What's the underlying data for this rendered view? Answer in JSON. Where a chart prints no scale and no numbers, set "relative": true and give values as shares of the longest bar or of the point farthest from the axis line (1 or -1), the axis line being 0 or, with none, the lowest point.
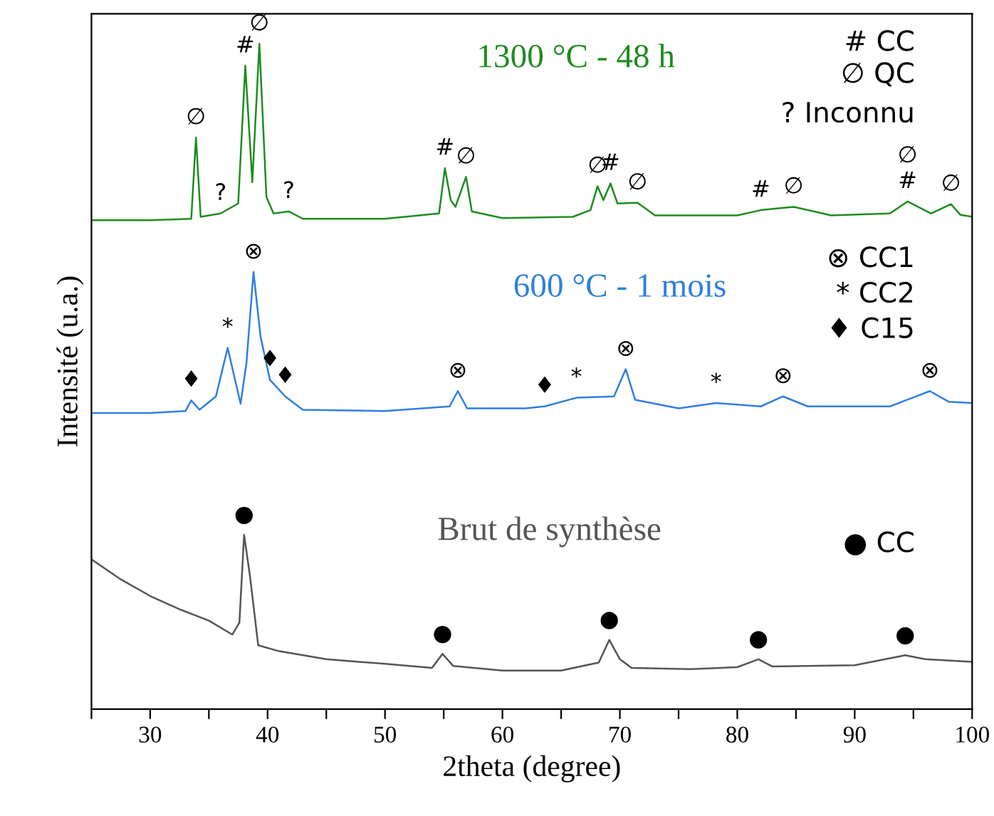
{
  "chart_data": {
    "type": "line",
    "relative": true,
    "xlabel": "2theta (degree)",
    "ylabel": "Intensité (u.a.)",
    "xlim": [
      25,
      100
    ],
    "xticks": [
      {
        "value": 25,
        "label": null
      },
      30,
      {
        "value": 35,
        "label": null
      },
      40,
      {
        "value": 45,
        "label": null
      },
      50,
      {
        "value": 55,
        "label": null
      },
      60,
      {
        "value": 65,
        "label": null
      },
      70,
      {
        "value": 75,
        "label": null
      },
      80,
      {
        "value": 85,
        "label": null
      },
      90,
      {
        "value": 95,
        "label": null
      },
      100
    ],
    "grid": false,
    "legend": false,
    "marker": "none",
    "line_style": "solid",
    "series": [
      {
        "name": "1300 °C - 48 h",
        "color": "#1e8c1e",
        "x": [
          25,
          30,
          33.5,
          33.9,
          34.3,
          36,
          37.5,
          38.1,
          38.7,
          39.3,
          39.9,
          40.5,
          41.8,
          43,
          50,
          54.6,
          55.1,
          55.6,
          56.0,
          56.9,
          57.4,
          60,
          66,
          67.5,
          68.1,
          68.6,
          69.2,
          69.8,
          71.5,
          73,
          80,
          82,
          84.8,
          88,
          93,
          94.5,
          96.5,
          98.2,
          99,
          100
        ],
        "values": [
          0.735,
          0.735,
          0.737,
          0.859,
          0.74,
          0.745,
          0.76,
          0.967,
          0.792,
          1.0,
          0.77,
          0.745,
          0.748,
          0.737,
          0.737,
          0.745,
          0.813,
          0.765,
          0.755,
          0.8,
          0.748,
          0.738,
          0.74,
          0.75,
          0.786,
          0.765,
          0.79,
          0.76,
          0.761,
          0.742,
          0.742,
          0.75,
          0.755,
          0.742,
          0.745,
          0.763,
          0.745,
          0.759,
          0.743,
          0.74
        ]
      },
      {
        "name": "600 °C - 1 mois",
        "color": "#2f7fe0",
        "x": [
          25,
          30,
          33,
          33.5,
          34.2,
          35.6,
          36.6,
          37.7,
          38.2,
          38.8,
          39.4,
          40.2,
          41.5,
          43,
          50,
          55.5,
          56.2,
          57,
          62,
          63.6,
          66.3,
          69.5,
          70.5,
          71.3,
          75,
          78.2,
          82,
          83.9,
          86,
          93,
          96.4,
          98,
          100
        ],
        "values": [
          0.445,
          0.445,
          0.448,
          0.464,
          0.45,
          0.47,
          0.543,
          0.459,
          0.52,
          0.657,
          0.56,
          0.495,
          0.47,
          0.45,
          0.448,
          0.455,
          0.478,
          0.452,
          0.452,
          0.455,
          0.468,
          0.47,
          0.511,
          0.465,
          0.452,
          0.46,
          0.455,
          0.47,
          0.455,
          0.455,
          0.478,
          0.462,
          0.46
        ]
      },
      {
        "name": "Brut de synthèse",
        "color": "#555555",
        "x": [
          25,
          27.5,
          30,
          32.5,
          35,
          37,
          37.6,
          38.0,
          38.5,
          39.2,
          41,
          45,
          50,
          54,
          54.9,
          55.8,
          60,
          65,
          68.2,
          69.1,
          70,
          71,
          76,
          80,
          81.8,
          83,
          90,
          94.3,
          96,
          100
        ],
        "values": [
          0.225,
          0.195,
          0.17,
          0.15,
          0.133,
          0.112,
          0.13,
          0.262,
          0.2,
          0.096,
          0.087,
          0.075,
          0.068,
          0.062,
          0.083,
          0.065,
          0.058,
          0.058,
          0.07,
          0.104,
          0.075,
          0.062,
          0.06,
          0.063,
          0.075,
          0.064,
          0.066,
          0.081,
          0.075,
          0.071
        ]
      }
    ],
    "annotations": [
      "# CC",
      "∅ QC",
      "? Inconnu",
      "⊗ CC1",
      "* CC2",
      "♦ C15",
      "● CC",
      {
        "text": "∅",
        "x": 33.9,
        "y": 0.859
      },
      {
        "text": "?",
        "x": 36,
        "y": 0.745
      },
      {
        "text": "#",
        "x": 38.1,
        "y": 0.967
      },
      {
        "text": "∅",
        "x": 39.3,
        "y": 1.0
      },
      {
        "text": "?",
        "x": 41.8,
        "y": 0.748
      },
      {
        "text": "#",
        "x": 55.1,
        "y": 0.813
      },
      {
        "text": "∅",
        "x": 56.9,
        "y": 0.8
      },
      {
        "text": "∅",
        "x": 68.1,
        "y": 0.786
      },
      {
        "text": "#",
        "x": 69.2,
        "y": 0.79
      },
      {
        "text": "∅",
        "x": 71.5,
        "y": 0.761
      },
      {
        "text": "#",
        "x": 82,
        "y": 0.75
      },
      {
        "text": "∅",
        "x": 84.8,
        "y": 0.755
      },
      {
        "text": "#",
        "x": 94.5,
        "y": 0.763
      },
      {
        "text": "∅",
        "x": 94.5,
        "y": 0.763
      },
      {
        "text": "∅",
        "x": 98.2,
        "y": 0.759
      },
      {
        "text": "♦",
        "x": 33.5,
        "y": 0.464
      },
      {
        "text": "*",
        "x": 36.6,
        "y": 0.543
      },
      {
        "text": "⊗",
        "x": 38.8,
        "y": 0.657
      },
      {
        "text": "♦",
        "x": 40.2,
        "y": 0.495
      },
      {
        "text": "♦",
        "x": 41.5,
        "y": 0.47
      },
      {
        "text": "⊗",
        "x": 56.2,
        "y": 0.478
      },
      {
        "text": "♦",
        "x": 63.6,
        "y": 0.455
      },
      {
        "text": "*",
        "x": 66.3,
        "y": 0.468
      },
      {
        "text": "⊗",
        "x": 70.5,
        "y": 0.511
      },
      {
        "text": "*",
        "x": 78.2,
        "y": 0.46
      },
      {
        "text": "⊗",
        "x": 83.9,
        "y": 0.47
      },
      {
        "text": "⊗",
        "x": 96.4,
        "y": 0.478
      },
      {
        "text": "●",
        "x": 38.0,
        "y": 0.262
      },
      {
        "text": "●",
        "x": 54.9,
        "y": 0.083
      },
      {
        "text": "●",
        "x": 69.1,
        "y": 0.104
      },
      {
        "text": "●",
        "x": 81.8,
        "y": 0.075
      },
      {
        "text": "●",
        "x": 94.3,
        "y": 0.081
      }
    ]
  }
}
